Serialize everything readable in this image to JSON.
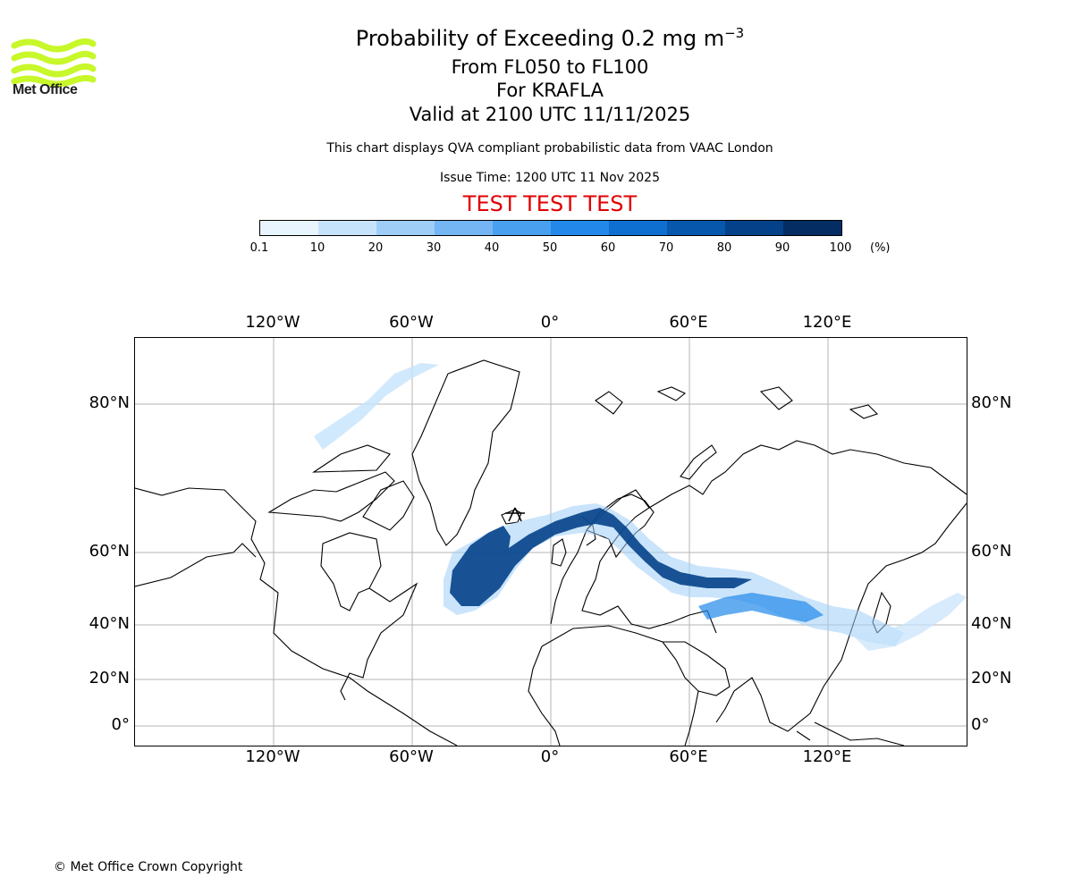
{
  "logo": {
    "text": "Met Office",
    "color": "#c8f72a"
  },
  "title": {
    "line1_prefix": "Probability of Exceeding 0.2 mg m",
    "line1_superscript": "−3",
    "line2": "From FL050 to FL100",
    "line3": "For KRAFLA",
    "line4": "Valid at 2100 UTC 11/11/2025"
  },
  "disclaimer": "This chart displays QVA compliant probabilistic data from VAAC London",
  "issue_time": "Issue Time: 1200 UTC 11 Nov 2025",
  "test_banner": {
    "text": "TEST TEST TEST",
    "color": "#e00000"
  },
  "colorbar": {
    "ticks": [
      "0.1",
      "10",
      "20",
      "30",
      "40",
      "50",
      "60",
      "70",
      "80",
      "90",
      "100"
    ],
    "unit": "(%)",
    "colors": [
      "#e8f4fe",
      "#c6e3fc",
      "#9ecdf8",
      "#74b6f4",
      "#4aa0f0",
      "#2289ea",
      "#0f6fd0",
      "#0757ad",
      "#044189",
      "#032d63"
    ]
  },
  "map": {
    "lon_labels": [
      "120°W",
      "60°W",
      "0°",
      "60°E",
      "120°E"
    ],
    "lat_labels": [
      "80°N",
      "60°N",
      "40°N",
      "20°N",
      "0°"
    ],
    "lon_values": [
      -120,
      -60,
      0,
      60,
      120
    ],
    "lat_values": [
      80,
      60,
      40,
      20,
      0
    ]
  },
  "copyright": "© Met Office Crown Copyright"
}
